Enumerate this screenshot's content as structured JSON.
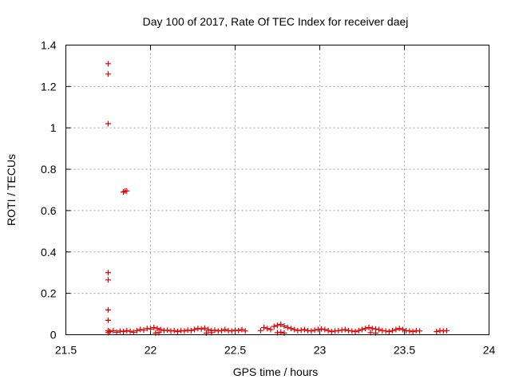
{
  "chart_data": {
    "type": "scatter",
    "title": "Day 100 of 2017, Rate Of TEC Index for receiver daej",
    "xlabel": "GPS time / hours",
    "ylabel": "ROTI / TECUs",
    "xlim": [
      21.5,
      24
    ],
    "ylim": [
      0,
      1.4
    ],
    "xticks": [
      "21.5",
      "22",
      "22.5",
      "23",
      "23.5",
      "24"
    ],
    "yticks": [
      "0",
      "0.2",
      "0.4",
      "0.6",
      "0.8",
      "1",
      "1.2",
      "1.4"
    ],
    "xtick_values": [
      21.5,
      22,
      22.5,
      23,
      23.5,
      24
    ],
    "ytick_values": [
      0,
      0.2,
      0.4,
      0.6,
      0.8,
      1.0,
      1.2,
      1.4
    ],
    "grid": true,
    "marker": "+",
    "marker_color": "#e00000",
    "series": [
      {
        "x": [
          21.75,
          21.75,
          21.75,
          21.75,
          21.75,
          21.75,
          21.75,
          21.75,
          21.75,
          21.84,
          21.85,
          21.86,
          21.76,
          21.78,
          21.8,
          21.82,
          21.84,
          21.86,
          21.88,
          21.9,
          21.92,
          21.94,
          21.96,
          21.98,
          22.0,
          22.02,
          22.04,
          22.06,
          22.08,
          22.1,
          22.12,
          22.14,
          22.16,
          22.18,
          22.2,
          22.22,
          22.24,
          22.26,
          22.28,
          22.3,
          22.32,
          22.34,
          22.36,
          22.38,
          22.4,
          22.42,
          22.44,
          22.46,
          22.48,
          22.5,
          22.52,
          22.54,
          22.56,
          22.65,
          22.67,
          22.69,
          22.71,
          22.73,
          22.75,
          22.77,
          22.79,
          22.81,
          22.83,
          22.85,
          22.87,
          22.89,
          22.91,
          22.93,
          22.95,
          22.97,
          22.99,
          23.01,
          23.03,
          23.05,
          23.07,
          23.09,
          23.11,
          23.13,
          23.15,
          23.17,
          23.19,
          23.21,
          23.23,
          23.25,
          23.27,
          23.29,
          23.31,
          23.33,
          23.35,
          23.37,
          23.39,
          23.41,
          23.43,
          23.45,
          23.47,
          23.49,
          23.51,
          23.53,
          23.55,
          23.57,
          23.59,
          23.69,
          23.71,
          23.73,
          23.75,
          22.03,
          22.05,
          22.33,
          22.36,
          22.75,
          22.77,
          22.79,
          23.3,
          23.33
        ],
        "y": [
          1.31,
          1.26,
          1.02,
          0.3,
          0.265,
          0.12,
          0.07,
          0.02,
          0.01,
          0.69,
          0.695,
          0.695,
          0.015,
          0.02,
          0.012,
          0.018,
          0.015,
          0.02,
          0.017,
          0.012,
          0.02,
          0.025,
          0.022,
          0.03,
          0.028,
          0.035,
          0.03,
          0.025,
          0.02,
          0.022,
          0.018,
          0.02,
          0.015,
          0.02,
          0.018,
          0.022,
          0.02,
          0.025,
          0.03,
          0.028,
          0.032,
          0.025,
          0.02,
          0.022,
          0.018,
          0.02,
          0.025,
          0.02,
          0.018,
          0.022,
          0.02,
          0.025,
          0.018,
          0.02,
          0.035,
          0.03,
          0.025,
          0.04,
          0.045,
          0.05,
          0.042,
          0.035,
          0.03,
          0.025,
          0.02,
          0.022,
          0.025,
          0.02,
          0.018,
          0.022,
          0.025,
          0.028,
          0.025,
          0.02,
          0.015,
          0.018,
          0.02,
          0.022,
          0.025,
          0.02,
          0.018,
          0.015,
          0.02,
          0.025,
          0.03,
          0.035,
          0.03,
          0.028,
          0.025,
          0.02,
          0.018,
          0.015,
          0.02,
          0.025,
          0.03,
          0.025,
          0.02,
          0.018,
          0.015,
          0.02,
          0.018,
          0.015,
          0.02,
          0.018,
          0.02,
          0.008,
          0.01,
          0.008,
          0.01,
          0.01,
          0.012,
          0.008,
          0.01,
          0.008
        ]
      }
    ]
  }
}
